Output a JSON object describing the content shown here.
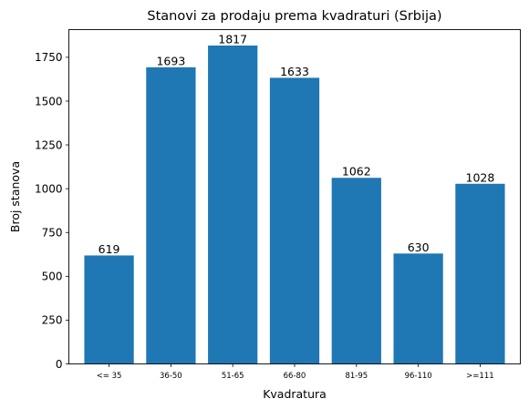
{
  "chart_data": {
    "type": "bar",
    "title": "Stanovi za prodaju prema kvadraturi (Srbija)",
    "xlabel": "Kvadratura",
    "ylabel": "Broj stanova",
    "categories": [
      "<= 35",
      "36-50",
      "51-65",
      "66-80",
      "81-95",
      "96-110",
      ">=111"
    ],
    "values": [
      619,
      1693,
      1817,
      1633,
      1062,
      630,
      1028
    ],
    "ylim": [
      0,
      1908
    ],
    "yticks": [
      0,
      250,
      500,
      750,
      1000,
      1250,
      1500,
      1750
    ],
    "bar_color": "#1f77b4",
    "grid": false,
    "legend": "none"
  }
}
